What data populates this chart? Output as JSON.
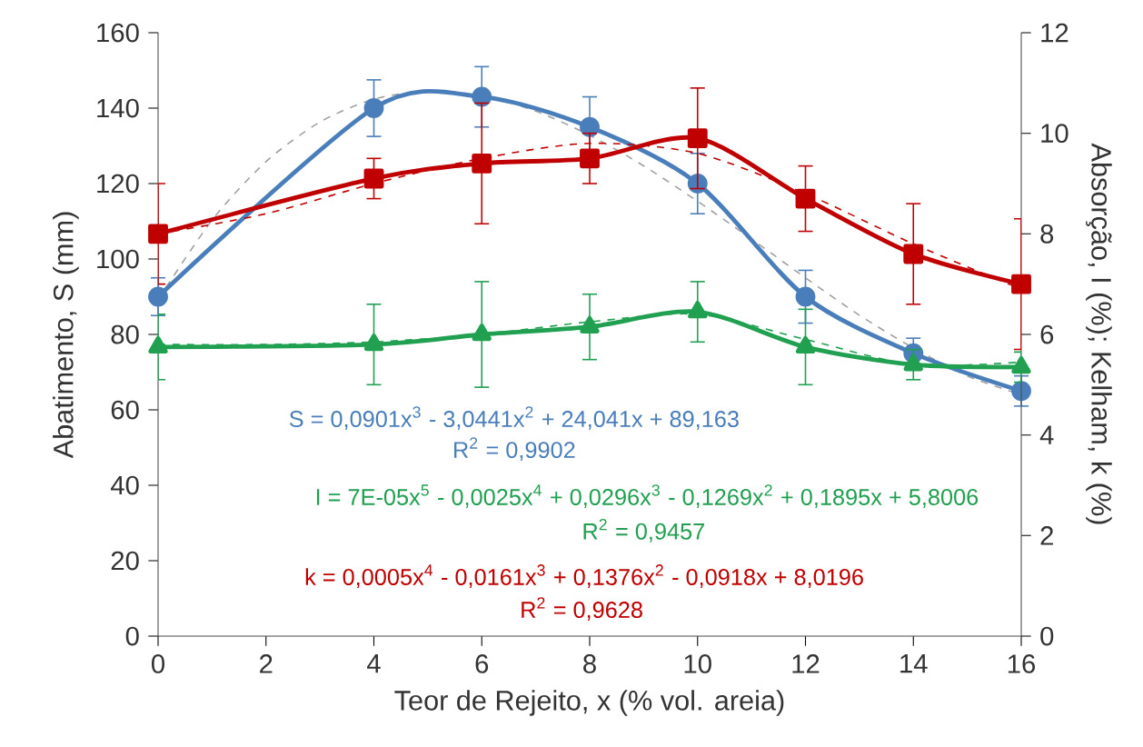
{
  "chart_data": {
    "type": "line",
    "xlabel": "Teor de Rejeito, x (% vol. areia)",
    "ylabel": "Abatimento, S (mm)",
    "y2label": "Absorção, I (%); Kelham, k (%)",
    "x": [
      0,
      4,
      6,
      8,
      10,
      12,
      14,
      16
    ],
    "xlim": [
      0,
      16
    ],
    "xticks": [
      0,
      2,
      4,
      6,
      8,
      10,
      12,
      14,
      16
    ],
    "ylim": [
      0,
      160
    ],
    "yticks": [
      0,
      20,
      40,
      60,
      80,
      100,
      120,
      140,
      160
    ],
    "y2lim": [
      0,
      12
    ],
    "y2ticks": [
      0,
      2,
      4,
      6,
      8,
      10,
      12
    ],
    "series": [
      {
        "type": "line",
        "color": "#a0a0a0",
        "marker": "none",
        "line_style": "dashed",
        "x": [
          0,
          1,
          2,
          3,
          4,
          5,
          6,
          7,
          8,
          9,
          10,
          11,
          12,
          13,
          14,
          15,
          16
        ],
        "values": [
          89.2,
          110.3,
          125.8,
          136.3,
          142.4,
          144.5,
          143.3,
          139.2,
          132.8,
          124.7,
          115.3,
          105.3,
          95.0,
          85.1,
          76.4,
          69.0,
          64.0
        ]
      },
      {
        "type": "line",
        "color": "#c00000",
        "marker": "none",
        "line_style": "dashed",
        "axis": "y2",
        "x": [
          0,
          2,
          4,
          6,
          8,
          10,
          12,
          14,
          16
        ],
        "values": [
          8.0,
          8.4,
          9.0,
          9.5,
          9.8,
          9.6,
          8.8,
          7.8,
          6.9
        ]
      },
      {
        "type": "line",
        "color": "#20a050",
        "marker": "none",
        "line_style": "dashed",
        "axis": "y2",
        "x": [
          0,
          2,
          4,
          6,
          8,
          10,
          12,
          14,
          16
        ],
        "values": [
          5.8,
          5.8,
          5.85,
          6.0,
          6.25,
          6.4,
          5.9,
          5.4,
          5.45
        ]
      },
      {
        "color": "#4a7ebb",
        "marker": "circle",
        "line_style": "solid",
        "values": [
          90,
          140,
          143,
          135,
          120,
          90,
          75,
          65
        ],
        "errors": [
          5,
          7.5,
          8,
          8,
          8,
          7,
          4,
          4
        ]
      },
      {
        "color": "#c00000",
        "marker": "square",
        "line_style": "solid",
        "axis": "y2",
        "values": [
          8.0,
          9.1,
          9.4,
          9.5,
          9.9,
          8.7,
          7.6,
          7.0
        ],
        "errors": [
          1.0,
          0.4,
          1.2,
          0.5,
          1.0,
          0.65,
          1.0,
          1.3
        ]
      },
      {
        "color": "#20a050",
        "marker": "triangle",
        "line_style": "solid",
        "axis": "y2",
        "values": [
          5.75,
          5.8,
          6.0,
          6.15,
          6.45,
          5.75,
          5.4,
          5.35
        ],
        "errors": [
          0.65,
          0.8,
          1.05,
          0.65,
          0.6,
          0.75,
          0.3,
          0.3
        ]
      }
    ],
    "annotations": [
      "S = 0,0901x$^{3}$ - 3,0441x$^{2}$ + 24,041x + 89,163",
      "R$^{2}$ = 0,9902",
      "I = 7E-05x$^{5}$ - 0,0025x$^{4}$ + 0,0296x$^{3}$ - 0,1269x$^{2}$ + 0,1895x + 5,8006",
      "R$^{2}$ = 0,9457",
      "k = 0,0005x$^{4}$ - 0,0161x$^{3}$ + 0,1376x$^{2}$ - 0,0918x + 8,0196",
      "R$^{2}$ = 0,9628"
    ]
  }
}
